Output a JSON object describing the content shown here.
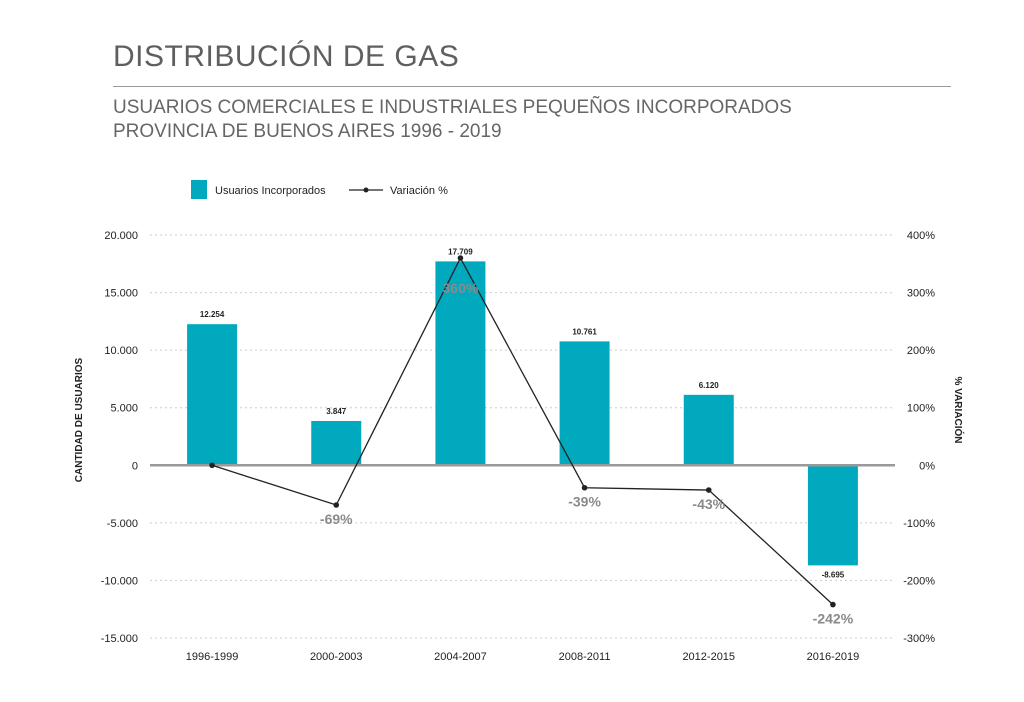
{
  "title": "DISTRIBUCIÓN DE GAS",
  "subtitle_line1": "USUARIOS COMERCIALES E INDUSTRIALES PEQUEÑOS INCORPORADOS",
  "subtitle_line2": "PROVINCIA DE BUENOS AIRES 1996 - 2019",
  "colors": {
    "bar": "#00a9bd",
    "line": "#222222",
    "zero_axis": "#9a9a9a",
    "grid": "#cccccc",
    "pct_label": "#8a8a8a",
    "pct_label_on_bar": "#ffffff"
  },
  "chart_data": {
    "type": "bar",
    "categories": [
      "1996-1999",
      "2000-2003",
      "2004-2007",
      "2008-2011",
      "2012-2015",
      "2016-2019"
    ],
    "series": [
      {
        "name": "Usuarios Incorporados",
        "type": "bar",
        "axis": "left",
        "values": [
          12254,
          3847,
          17709,
          10761,
          6120,
          -8695
        ],
        "labels": [
          "12.254",
          "3.847",
          "17.709",
          "10.761",
          "6.120",
          "-8.695"
        ]
      },
      {
        "name": "Variación %",
        "type": "line",
        "axis": "right",
        "values": [
          0,
          -69,
          360,
          -39,
          -43,
          -242
        ],
        "labels": [
          "",
          "-69%",
          "360%",
          "-39%",
          "-43%",
          "-242%"
        ]
      }
    ],
    "ylabel": "CANTIDAD DE USUARIOS",
    "ylabel_right": "% VARIACIÓN",
    "ylim": [
      -15000,
      20000
    ],
    "ylim_right": [
      -300,
      400
    ],
    "yticks": [
      20000,
      15000,
      10000,
      5000,
      0,
      -5000,
      -10000,
      -15000
    ],
    "ytick_labels": [
      "20.000",
      "15.000",
      "10.000",
      "5.000",
      "0",
      "-5.000",
      "-10.000",
      "-15.000"
    ],
    "yticks_right": [
      400,
      300,
      200,
      100,
      0,
      -100,
      -200,
      -300
    ],
    "ytick_labels_right": [
      "400%",
      "300%",
      "200%",
      "100%",
      "0%",
      "-100%",
      "-200%",
      "-300%"
    ],
    "grid": true,
    "legend_position": "top-left"
  }
}
